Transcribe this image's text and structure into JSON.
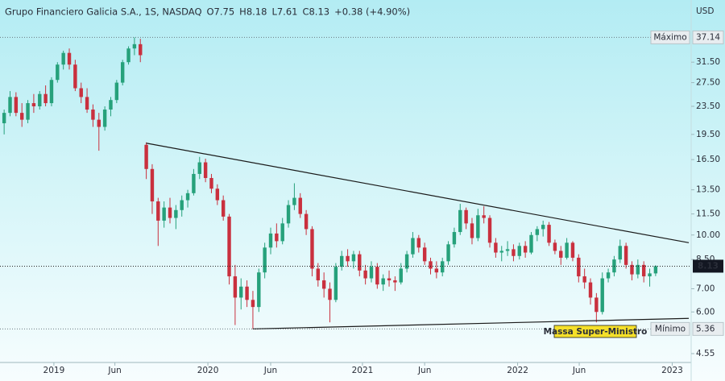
{
  "chart_data": {
    "type": "candlestick",
    "title": "Grupo Financiero Galicia S.A., 1S, NASDAQ",
    "ohlc_legend": [
      "O7.75",
      "H8.18",
      "L7.61",
      "C8.13",
      "+0.38 (+4.90%)"
    ],
    "currency": "USD",
    "log_scale": true,
    "up_color": "#26a17b",
    "down_color": "#c9303e",
    "xlim": [
      -0.7,
      116
    ],
    "xticks": [
      {
        "value": 8.4,
        "label": "2019"
      },
      {
        "value": 18.7,
        "label": "Jun"
      },
      {
        "value": 34.4,
        "label": "2020"
      },
      {
        "value": 45,
        "label": "Jun"
      },
      {
        "value": 60.5,
        "label": "2021"
      },
      {
        "value": 71,
        "label": "Jun"
      },
      {
        "value": 86.7,
        "label": "2022"
      },
      {
        "value": 97.1,
        "label": "Jun"
      },
      {
        "value": 112.8,
        "label": "2023"
      }
    ],
    "ylim": [
      4.29,
      47.6
    ],
    "yticks": [
      4.55,
      {
        "value": 6,
        "label": "6.00"
      },
      {
        "value": 7,
        "label": "7.00"
      },
      {
        "value": 8.5,
        "label": "8.50"
      },
      {
        "value": 10,
        "label": "10.00"
      },
      {
        "value": 11.5,
        "label": "11.50"
      },
      {
        "value": 13.5,
        "label": "13.50"
      },
      {
        "value": 16.5,
        "label": "16.50"
      },
      {
        "value": 19.5,
        "label": "19.50"
      },
      {
        "value": 23.5,
        "label": "23.50"
      },
      {
        "value": 27.5,
        "label": "27.50"
      },
      {
        "value": 31.5,
        "label": "31.50"
      }
    ],
    "price_labels": [
      {
        "name": "Máximo",
        "value": 37.14
      },
      {
        "name": "Mínimo",
        "value": 5.36
      }
    ],
    "last_price": 8.13,
    "trendlines": [
      [
        [
          24,
          18.4
        ],
        [
          115.6,
          9.5
        ]
      ],
      [
        [
          42,
          5.36
        ],
        [
          115.6,
          5.75
        ]
      ]
    ],
    "annotation": "Massa Super-Ministro",
    "candles": [
      [
        21,
        23,
        19.5,
        22.5
      ],
      [
        22.5,
        26,
        22,
        25
      ],
      [
        25,
        25.8,
        22,
        22.5
      ],
      [
        22.5,
        24,
        20.5,
        21.5
      ],
      [
        21.5,
        24.5,
        21,
        24
      ],
      [
        24,
        25.5,
        22.5,
        23.5
      ],
      [
        23.5,
        26,
        23,
        25.5
      ],
      [
        25.5,
        27,
        23.5,
        24
      ],
      [
        24,
        28.5,
        23.5,
        28
      ],
      [
        28,
        31.5,
        27.5,
        31
      ],
      [
        31,
        34,
        30,
        33.5
      ],
      [
        33.5,
        34.5,
        30,
        31
      ],
      [
        31,
        32,
        26,
        26.5
      ],
      [
        26.5,
        27.5,
        24,
        25
      ],
      [
        25,
        26.5,
        22.5,
        23
      ],
      [
        23,
        23.8,
        20.5,
        21.5
      ],
      [
        21.5,
        22.5,
        17.5,
        20.5
      ],
      [
        20.5,
        23.5,
        20,
        23
      ],
      [
        23,
        25,
        22,
        24.5
      ],
      [
        24.5,
        28,
        24,
        27.5
      ],
      [
        27.5,
        32,
        27,
        31.5
      ],
      [
        31.5,
        35,
        31,
        34.5
      ],
      [
        34.5,
        37.14,
        33,
        35.5
      ],
      [
        35.5,
        36.8,
        31.5,
        33
      ],
      [
        18.2,
        18.5,
        14.5,
        15.5
      ],
      [
        15.5,
        16,
        11.5,
        12.5
      ],
      [
        12.5,
        12.8,
        9.3,
        11
      ],
      [
        11,
        12.5,
        10.5,
        12
      ],
      [
        12,
        12.8,
        10.8,
        11.2
      ],
      [
        11.2,
        12.2,
        10.4,
        11.8
      ],
      [
        11.8,
        13,
        11.3,
        12.6
      ],
      [
        12.6,
        13.5,
        12,
        13.2
      ],
      [
        13.2,
        15.5,
        13,
        15
      ],
      [
        15,
        16.8,
        14.5,
        16.2
      ],
      [
        16.2,
        16.6,
        14.2,
        14.6
      ],
      [
        14.6,
        15,
        13.2,
        13.6
      ],
      [
        13.6,
        14,
        12.2,
        12.6
      ],
      [
        12.6,
        13,
        11,
        11.3
      ],
      [
        11.3,
        11.5,
        7.2,
        7.6
      ],
      [
        7.6,
        8.2,
        5.5,
        6.6
      ],
      [
        6.6,
        7.5,
        6.1,
        7.1
      ],
      [
        7.1,
        7.4,
        6.2,
        6.5
      ],
      [
        6.5,
        6.9,
        5.36,
        6.2
      ],
      [
        6.2,
        8,
        6,
        7.8
      ],
      [
        7.8,
        9.5,
        7.5,
        9.2
      ],
      [
        9.2,
        10.5,
        8.8,
        10.1
      ],
      [
        10.1,
        10.8,
        9.2,
        9.6
      ],
      [
        9.6,
        11.2,
        9.4,
        10.8
      ],
      [
        10.8,
        12.6,
        10.5,
        12.2
      ],
      [
        12.2,
        14.1,
        11.8,
        12.8
      ],
      [
        12.8,
        13.2,
        11.2,
        11.5
      ],
      [
        11.5,
        11.8,
        10,
        10.4
      ],
      [
        10.4,
        10.6,
        7.6,
        8
      ],
      [
        8,
        8.3,
        7.1,
        7.4
      ],
      [
        7.4,
        7.8,
        6.6,
        7
      ],
      [
        7,
        7.3,
        5.6,
        6.5
      ],
      [
        6.5,
        8.3,
        6.4,
        8.1
      ],
      [
        8.1,
        9,
        7.9,
        8.7
      ],
      [
        8.7,
        9.1,
        8.1,
        8.4
      ],
      [
        8.4,
        9,
        8,
        8.8
      ],
      [
        8.8,
        9,
        7.6,
        7.9
      ],
      [
        7.9,
        8.2,
        7.2,
        7.5
      ],
      [
        7.5,
        8.4,
        7.3,
        8.1
      ],
      [
        8.1,
        8.3,
        7,
        7.2
      ],
      [
        7.2,
        7.7,
        6.9,
        7.5
      ],
      [
        7.5,
        7.9,
        7.1,
        7.4
      ],
      [
        7.4,
        7.6,
        6.9,
        7.3
      ],
      [
        7.3,
        8.3,
        7.2,
        8
      ],
      [
        8,
        9,
        7.8,
        8.8
      ],
      [
        8.8,
        10.2,
        8.6,
        9.8
      ],
      [
        9.8,
        10,
        8.9,
        9.2
      ],
      [
        9.2,
        9.5,
        8.2,
        8.4
      ],
      [
        8.4,
        8.6,
        7.7,
        8
      ],
      [
        8,
        8.4,
        7.5,
        7.8
      ],
      [
        7.8,
        8.6,
        7.6,
        8.4
      ],
      [
        8.4,
        9.6,
        8.2,
        9.4
      ],
      [
        9.4,
        10.5,
        9.2,
        10.2
      ],
      [
        10.2,
        12.3,
        10,
        11.8
      ],
      [
        11.8,
        12,
        10.4,
        10.8
      ],
      [
        10.8,
        11.2,
        9.4,
        9.8
      ],
      [
        9.8,
        11.9,
        9.6,
        11.4
      ],
      [
        11.4,
        12.1,
        10.8,
        11.2
      ],
      [
        11.2,
        11.4,
        9.2,
        9.5
      ],
      [
        9.5,
        9.8,
        8.6,
        8.9
      ],
      [
        8.9,
        9.3,
        8.4,
        9
      ],
      [
        9,
        9.6,
        8.7,
        9.1
      ],
      [
        9.1,
        9.4,
        8.4,
        8.7
      ],
      [
        8.7,
        9.5,
        8.5,
        9.3
      ],
      [
        9.3,
        9.6,
        8.6,
        8.9
      ],
      [
        8.9,
        10.2,
        8.8,
        10
      ],
      [
        10,
        10.6,
        9.6,
        10.4
      ],
      [
        10.4,
        11,
        9.9,
        10.7
      ],
      [
        10.7,
        10.9,
        9.3,
        9.5
      ],
      [
        9.5,
        9.7,
        8.8,
        9
      ],
      [
        9,
        9.3,
        8.2,
        8.6
      ],
      [
        8.6,
        9.8,
        8.5,
        9.5
      ],
      [
        9.5,
        9.6,
        8.4,
        8.6
      ],
      [
        8.6,
        8.8,
        7.3,
        7.6
      ],
      [
        7.6,
        8,
        7,
        7.3
      ],
      [
        7.3,
        7.5,
        6.3,
        6.6
      ],
      [
        6.6,
        6.8,
        5.6,
        6
      ],
      [
        6,
        7.8,
        5.9,
        7.5
      ],
      [
        7.5,
        8,
        7.3,
        7.8
      ],
      [
        7.8,
        8.7,
        7.6,
        8.5
      ],
      [
        8.5,
        9.7,
        8.3,
        9.3
      ],
      [
        9.3,
        9.5,
        8,
        8.2
      ],
      [
        8.2,
        8.4,
        7.4,
        7.7
      ],
      [
        7.7,
        8.5,
        7.5,
        8.2
      ],
      [
        8.2,
        8.4,
        7.3,
        7.6
      ],
      [
        7.6,
        8,
        7.1,
        7.75
      ],
      [
        7.75,
        8.18,
        7.61,
        8.13
      ]
    ]
  }
}
